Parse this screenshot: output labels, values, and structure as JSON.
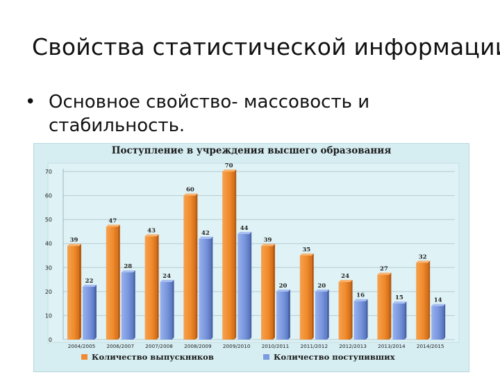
{
  "slide": {
    "title": "Свойства статистической информации",
    "bullet_symbol": "•",
    "bullet_text": "Основное свойство- массовость и стабильность."
  },
  "chart_data": {
    "type": "bar",
    "title": "Поступление в учреждения высшего образования",
    "categories": [
      "2004/2005",
      "2006/2007",
      "2007/2008",
      "2008/2009",
      "2009/2010",
      "2010/2011",
      "2011/2012",
      "2012/2013",
      "2013/2014",
      "2014/2015"
    ],
    "series": [
      {
        "name": "Количество выпускников",
        "values": [
          39,
          47,
          43,
          60,
          70,
          39,
          35,
          24,
          27,
          32
        ],
        "color": "#f28a33"
      },
      {
        "name": "Количество поступивших",
        "values": [
          22,
          28,
          24,
          42,
          44,
          20,
          20,
          16,
          15,
          14
        ],
        "color": "#7b9ae0"
      }
    ],
    "ylim": [
      0,
      70
    ],
    "yticks": [
      0,
      10,
      20,
      30,
      40,
      50,
      60,
      70
    ],
    "grid": true,
    "legend_position": "bottom",
    "xlabel": "",
    "ylabel": ""
  }
}
